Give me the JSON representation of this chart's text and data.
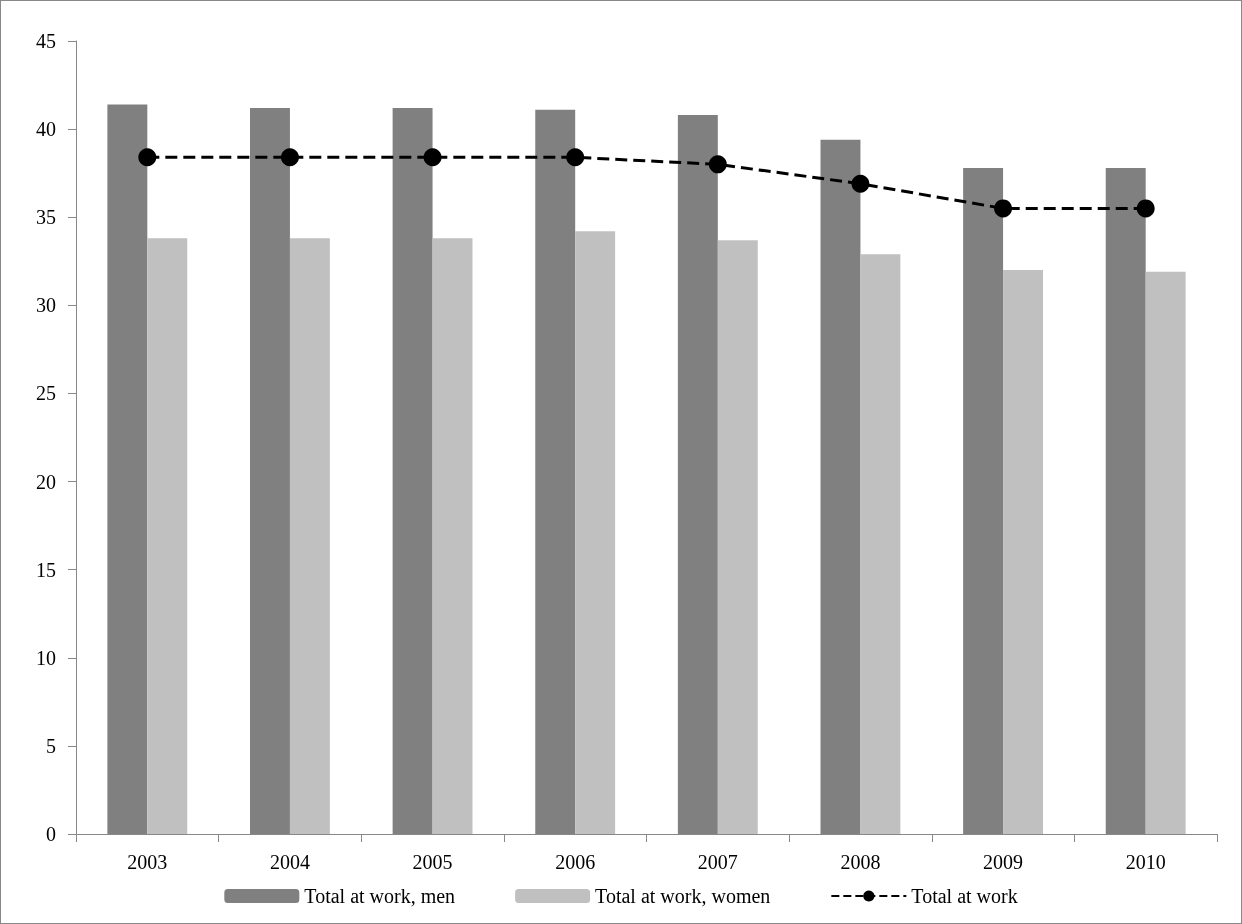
{
  "chart_data": {
    "type": "bar",
    "categories": [
      "2003",
      "2004",
      "2005",
      "2006",
      "2007",
      "2008",
      "2009",
      "2010"
    ],
    "series": [
      {
        "name": "Total at work, men",
        "color": "#808080",
        "values": [
          41.4,
          41.2,
          41.2,
          41.1,
          40.8,
          39.4,
          37.8,
          37.8
        ]
      },
      {
        "name": "Total at work, women",
        "color": "#c0c0c0",
        "values": [
          33.8,
          33.8,
          33.8,
          34.2,
          33.7,
          32.9,
          32.0,
          31.9
        ]
      },
      {
        "name": "Total at work",
        "type": "line",
        "color": "#000000",
        "marker": "circle",
        "line_style": "dashed",
        "values": [
          38.4,
          38.4,
          38.4,
          38.4,
          38.0,
          36.9,
          35.5,
          35.5
        ]
      }
    ],
    "ylim": [
      0,
      45
    ],
    "yticks": [
      0,
      5,
      10,
      15,
      20,
      25,
      30,
      35,
      40,
      45
    ],
    "grid": false,
    "legend": "bottom"
  }
}
